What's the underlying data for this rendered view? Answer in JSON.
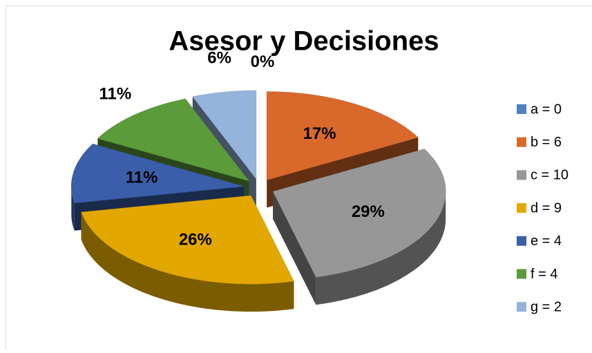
{
  "chart_data": {
    "type": "pie3d",
    "title": "Asesor y Decisiones",
    "categories": [
      "a = 0",
      "b = 6",
      "c = 10",
      "d = 9",
      "e = 4",
      "f = 4",
      "g = 2"
    ],
    "values": [
      0,
      17,
      29,
      26,
      11,
      11,
      6
    ],
    "value_labels": [
      "0%",
      "17%",
      "29%",
      "26%",
      "11%",
      "11%",
      "6%"
    ],
    "colors": [
      "#4f81bd",
      "#d9692b",
      "#979797",
      "#e2a700",
      "#3a5ea9",
      "#5b9b3a",
      "#95b4dc"
    ],
    "legend": "right"
  }
}
